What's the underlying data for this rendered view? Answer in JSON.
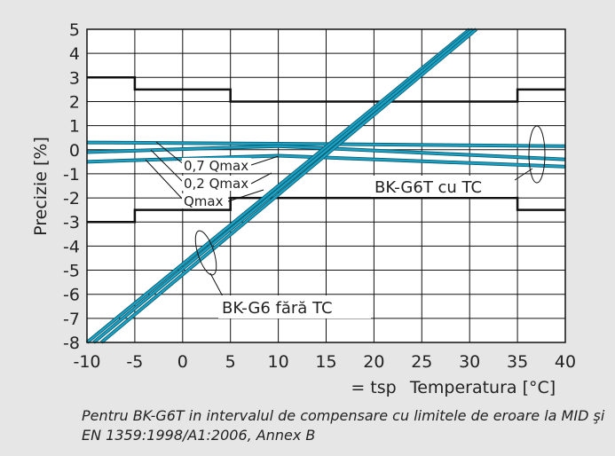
{
  "chart_data": {
    "type": "line",
    "ylabel": "Precizie [%]",
    "xlabel": "Temperatura [°C]",
    "xlabel_prefix": "= tsp",
    "xlim": [
      -10,
      40
    ],
    "ylim": [
      -8,
      5
    ],
    "xticks": [
      -10,
      -5,
      0,
      5,
      10,
      15,
      20,
      25,
      30,
      35,
      40
    ],
    "yticks": [
      5,
      4,
      3,
      2,
      1,
      0,
      -1,
      -2,
      -3,
      -4,
      -5,
      -6,
      -7,
      -8
    ],
    "grid": true,
    "mpe_limits": {
      "upper": {
        "x": [
          -10,
          -5,
          -5,
          5,
          5,
          35,
          35,
          40
        ],
        "y": [
          3,
          3,
          2.5,
          2.5,
          2,
          2,
          2.5,
          2.5
        ]
      },
      "lower": {
        "x": [
          -10,
          -5,
          -5,
          5,
          5,
          35,
          35,
          40
        ],
        "y": [
          -3,
          -3,
          -2.5,
          -2.5,
          -2,
          -2,
          -2.5,
          -2.5
        ]
      }
    },
    "series": [
      {
        "group": "BK-G6T cu TC",
        "x": [
          -10,
          10,
          40
        ],
        "y": [
          0.3,
          0.25,
          0.15
        ]
      },
      {
        "group": "BK-G6T cu TC",
        "x": [
          -10,
          10,
          40
        ],
        "y": [
          -0.1,
          0.15,
          -0.4
        ]
      },
      {
        "group": "BK-G6T cu TC",
        "x": [
          -10,
          10,
          40
        ],
        "y": [
          -0.5,
          -0.25,
          -0.7
        ]
      },
      {
        "group": "BK-G6 fără TC",
        "x": [
          -10,
          30
        ],
        "y": [
          -8.0,
          5.0
        ]
      },
      {
        "group": "BK-G6 fără TC",
        "x": [
          -9.3,
          30.3
        ],
        "y": [
          -8.0,
          5.0
        ]
      },
      {
        "group": "BK-G6 fără TC",
        "x": [
          -8.5,
          30.7
        ],
        "y": [
          -8.0,
          5.0
        ]
      }
    ],
    "annotations": {
      "q07": "0,7 Qmax",
      "q02": "0,2 Qmax",
      "qmax": "Qmax",
      "with_tc": "BK-G6T cu TC",
      "without_tc": "BK-G6 fără TC"
    },
    "colors": {
      "series": "#1aa3c6",
      "limits": "#111111",
      "grid": "#111111",
      "plot_bg": "#ffffff"
    }
  },
  "caption": "Pentru BK-G6T in intervalul de compensare cu limitele de eroare la MID şi EN 1359:1998/A1:2006, Annex B"
}
